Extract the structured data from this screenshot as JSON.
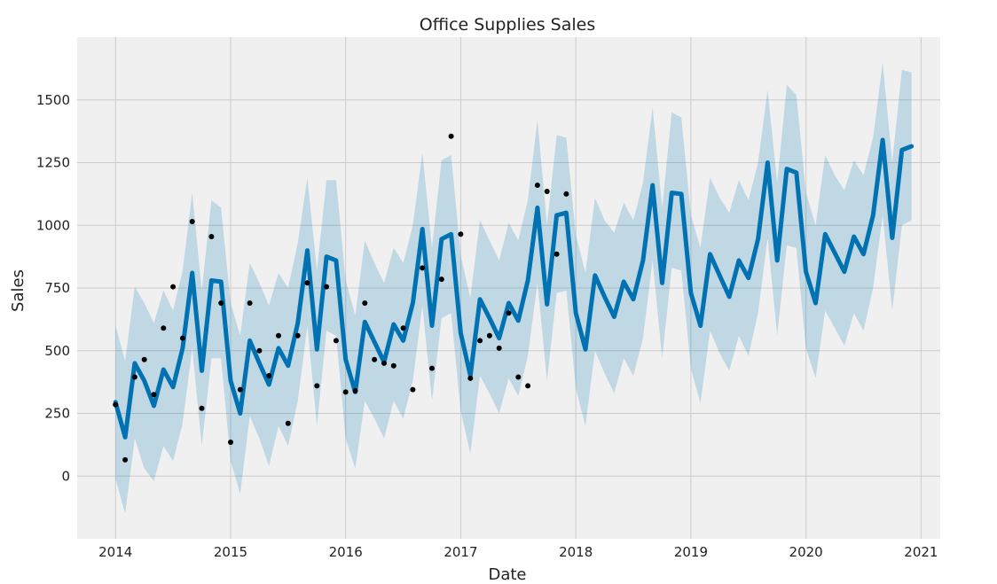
{
  "chart_data": {
    "type": "line",
    "title": "Office Supplies Sales",
    "xlabel": "Date",
    "ylabel": "Sales",
    "x_ticks": [
      "2014",
      "2015",
      "2016",
      "2017",
      "2018",
      "2019",
      "2020",
      "2021"
    ],
    "y_ticks": [
      0,
      250,
      500,
      750,
      1000,
      1250,
      1500
    ],
    "xlim": [
      "2013-09-01",
      "2021-03-01"
    ],
    "ylim": [
      -250,
      1750
    ],
    "grid": true,
    "colors": {
      "forecast": "#0072b2",
      "interval": "#0072b2",
      "observed": "#000000",
      "plot_background": "#f0f0f0",
      "grid": "#cbcbcb"
    },
    "series": [
      {
        "type": "line",
        "x": [
          "2014-01",
          "2014-02",
          "2014-03",
          "2014-04",
          "2014-05",
          "2014-06",
          "2014-07",
          "2014-08",
          "2014-09",
          "2014-10",
          "2014-11",
          "2014-12",
          "2015-01",
          "2015-02",
          "2015-03",
          "2015-04",
          "2015-05",
          "2015-06",
          "2015-07",
          "2015-08",
          "2015-09",
          "2015-10",
          "2015-11",
          "2015-12",
          "2016-01",
          "2016-02",
          "2016-03",
          "2016-04",
          "2016-05",
          "2016-06",
          "2016-07",
          "2016-08",
          "2016-09",
          "2016-10",
          "2016-11",
          "2016-12",
          "2017-01",
          "2017-02",
          "2017-03",
          "2017-04",
          "2017-05",
          "2017-06",
          "2017-07",
          "2017-08",
          "2017-09",
          "2017-10",
          "2017-11",
          "2017-12",
          "2018-01",
          "2018-02",
          "2018-03",
          "2018-04",
          "2018-05",
          "2018-06",
          "2018-07",
          "2018-08",
          "2018-09",
          "2018-10",
          "2018-11",
          "2018-12",
          "2019-01",
          "2019-02",
          "2019-03",
          "2019-04",
          "2019-05",
          "2019-06",
          "2019-07",
          "2019-08",
          "2019-09",
          "2019-10",
          "2019-11",
          "2019-12",
          "2020-01",
          "2020-02",
          "2020-03",
          "2020-04",
          "2020-05",
          "2020-06",
          "2020-07",
          "2020-08",
          "2020-09",
          "2020-10",
          "2020-11",
          "2020-12"
        ],
        "y": [
          295,
          155,
          450,
          380,
          280,
          425,
          355,
          510,
          810,
          420,
          780,
          775,
          380,
          250,
          540,
          450,
          365,
          510,
          440,
          610,
          900,
          505,
          875,
          860,
          465,
          335,
          615,
          535,
          455,
          605,
          540,
          690,
          985,
          600,
          945,
          965,
          570,
          400,
          705,
          630,
          550,
          690,
          620,
          780,
          1070,
          685,
          1040,
          1050,
          650,
          505,
          800,
          715,
          635,
          775,
          705,
          860,
          1160,
          770,
          1130,
          1125,
          730,
          600,
          885,
          800,
          715,
          860,
          790,
          945,
          1250,
          860,
          1225,
          1210,
          815,
          690,
          965,
          890,
          815,
          955,
          885,
          1040,
          1340,
          950,
          1300,
          1315
        ],
        "lower": [
          -10,
          -150,
          150,
          30,
          -20,
          120,
          60,
          210,
          510,
          120,
          470,
          470,
          60,
          -70,
          240,
          150,
          40,
          200,
          120,
          300,
          600,
          200,
          580,
          560,
          150,
          30,
          300,
          230,
          150,
          300,
          230,
          380,
          680,
          300,
          630,
          650,
          260,
          90,
          400,
          330,
          250,
          390,
          320,
          480,
          770,
          380,
          730,
          740,
          350,
          200,
          500,
          410,
          330,
          470,
          400,
          550,
          860,
          470,
          830,
          820,
          430,
          290,
          580,
          490,
          420,
          560,
          480,
          650,
          950,
          560,
          920,
          910,
          510,
          390,
          660,
          590,
          520,
          650,
          580,
          750,
          1040,
          660,
          1000,
          1020
        ],
        "upper": [
          600,
          460,
          755,
          690,
          610,
          740,
          660,
          820,
          1130,
          740,
          1100,
          1070,
          690,
          560,
          850,
          770,
          680,
          810,
          750,
          930,
          1190,
          820,
          1180,
          1180,
          780,
          640,
          940,
          850,
          770,
          910,
          850,
          1000,
          1290,
          910,
          1260,
          1280,
          880,
          710,
          1020,
          940,
          860,
          1010,
          940,
          1100,
          1420,
          1000,
          1360,
          1350,
          960,
          810,
          1110,
          1020,
          970,
          1090,
          1020,
          1170,
          1470,
          1070,
          1450,
          1430,
          1040,
          910,
          1190,
          1110,
          1050,
          1180,
          1100,
          1250,
          1540,
          1170,
          1560,
          1520,
          1130,
          1000,
          1280,
          1200,
          1140,
          1260,
          1200,
          1350,
          1650,
          1250,
          1620,
          1610
        ]
      },
      {
        "type": "scatter",
        "x": [
          "2014-01",
          "2014-02",
          "2014-03",
          "2014-04",
          "2014-05",
          "2014-06",
          "2014-07",
          "2014-08",
          "2014-09",
          "2014-10",
          "2014-11",
          "2014-12",
          "2015-01",
          "2015-02",
          "2015-03",
          "2015-04",
          "2015-05",
          "2015-06",
          "2015-07",
          "2015-08",
          "2015-09",
          "2015-10",
          "2015-11",
          "2015-12",
          "2016-01",
          "2016-02",
          "2016-03",
          "2016-04",
          "2016-05",
          "2016-06",
          "2016-07",
          "2016-08",
          "2016-09",
          "2016-10",
          "2016-11",
          "2016-12",
          "2017-01",
          "2017-02",
          "2017-03",
          "2017-04",
          "2017-05",
          "2017-06",
          "2017-07",
          "2017-08",
          "2017-09",
          "2017-10",
          "2017-11",
          "2017-12"
        ],
        "y": [
          285,
          65,
          395,
          465,
          325,
          590,
          755,
          550,
          1015,
          270,
          955,
          690,
          135,
          345,
          690,
          500,
          400,
          560,
          210,
          560,
          770,
          360,
          755,
          540,
          335,
          340,
          690,
          465,
          450,
          440,
          590,
          345,
          830,
          430,
          785,
          1355,
          965,
          390,
          540,
          560,
          510,
          650,
          395,
          360,
          1160,
          1135,
          885,
          1125
        ]
      }
    ]
  }
}
